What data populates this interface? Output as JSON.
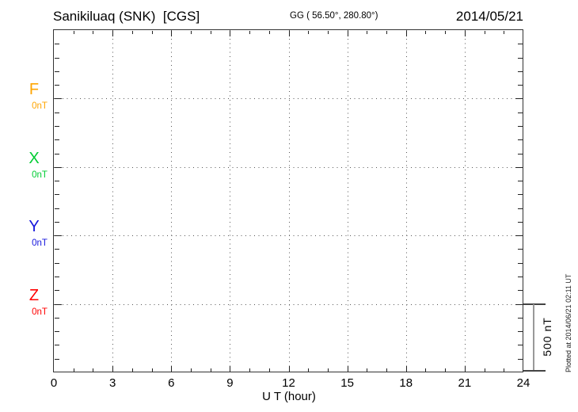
{
  "header": {
    "title": "Sanikiluaq (SNK)  [CGS]",
    "coords": "GG ( 56.50°, 280.80°)",
    "date": "2014/05/21"
  },
  "xaxis": {
    "label": "U T (hour)",
    "tick_labels": [
      "0",
      "3",
      "6",
      "9",
      "12",
      "15",
      "18",
      "21",
      "24"
    ]
  },
  "scalebar_label": "500 nT",
  "plotted_note": "Plotted at 2014/06/21 02:11 UT",
  "chart_data": {
    "type": "line",
    "title": "Sanikiluaq (SNK) [CGS]",
    "subtitle": "GG ( 56.50°, 280.80°)",
    "date": "2014/05/21",
    "xlabel": "U T (hour)",
    "x_range": [
      0,
      24
    ],
    "x_major_tick": 3,
    "x_minor_tick": 1,
    "x_gridline_hours": [
      3,
      6,
      9,
      12,
      15,
      18,
      21
    ],
    "x_tick_labels": [
      "0",
      "3",
      "6",
      "9",
      "12",
      "15",
      "18",
      "21",
      "24"
    ],
    "y_unit": "nT",
    "y_minor_tick_nT": 100,
    "y_panel_spacing_nT": 500,
    "y_total_range_nT": 2500,
    "scale_bar_nT": 500,
    "scale_bar_label": "500 nT",
    "grid": true,
    "legend_position": "left",
    "series": [
      {
        "name": "F",
        "baseline_label": "0nT",
        "color": "#FFA500",
        "values": []
      },
      {
        "name": "X",
        "baseline_label": "0nT",
        "color": "#00CC33",
        "values": []
      },
      {
        "name": "Y",
        "baseline_label": "0nT",
        "color": "#1515DD",
        "values": []
      },
      {
        "name": "Z",
        "baseline_label": "0nT",
        "color": "#FF0000",
        "values": []
      }
    ],
    "plotted_at": "Plotted at 2014/06/21 02:11 UT"
  }
}
